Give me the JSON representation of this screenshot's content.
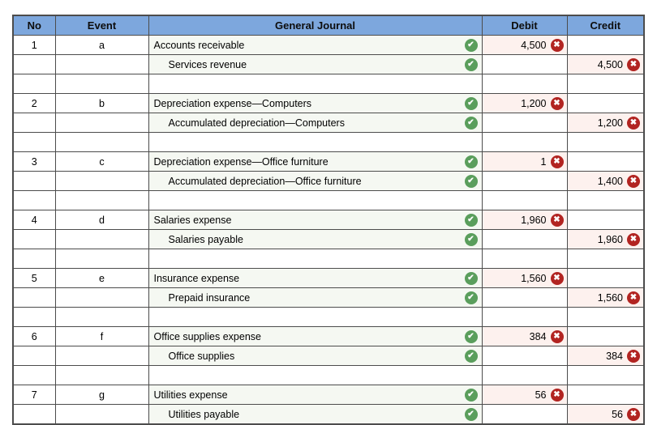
{
  "colors": {
    "header_bg": "#7da7dd",
    "grid_border": "#4c4c4c",
    "journal_cell_bg": "#f5f8f2",
    "amount_cell_bg": "#fdf1ee",
    "correct_green": "#5a9e5c",
    "incorrect_red": "#b22421"
  },
  "icons": {
    "check_glyph": "✔",
    "x_glyph": "✖"
  },
  "table": {
    "headers": {
      "no": "No",
      "event": "Event",
      "journal": "General Journal",
      "debit": "Debit",
      "credit": "Credit"
    },
    "entries": [
      {
        "no": "1",
        "event": "a",
        "debit_account": "Accounts receivable",
        "debit_amount": "4,500",
        "credit_account": "Services revenue",
        "credit_amount": "4,500"
      },
      {
        "no": "2",
        "event": "b",
        "debit_account": "Depreciation expense—Computers",
        "debit_amount": "1,200",
        "credit_account": "Accumulated depreciation—Computers",
        "credit_amount": "1,200"
      },
      {
        "no": "3",
        "event": "c",
        "debit_account": "Depreciation expense—Office furniture",
        "debit_amount": "1",
        "credit_account": "Accumulated depreciation—Office furniture",
        "credit_amount": "1,400"
      },
      {
        "no": "4",
        "event": "d",
        "debit_account": "Salaries expense",
        "debit_amount": "1,960",
        "credit_account": "Salaries payable",
        "credit_amount": "1,960"
      },
      {
        "no": "5",
        "event": "e",
        "debit_account": "Insurance expense",
        "debit_amount": "1,560",
        "credit_account": "Prepaid insurance",
        "credit_amount": "1,560"
      },
      {
        "no": "6",
        "event": "f",
        "debit_account": "Office supplies expense",
        "debit_amount": "384",
        "credit_account": "Office supplies",
        "credit_amount": "384"
      },
      {
        "no": "7",
        "event": "g",
        "debit_account": "Utilities expense",
        "debit_amount": "56",
        "credit_account": "Utilities payable",
        "credit_amount": "56"
      }
    ]
  }
}
